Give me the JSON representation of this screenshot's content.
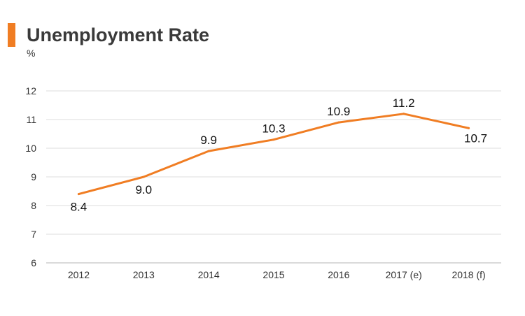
{
  "title": "Unemployment Rate",
  "unit_label": "%",
  "colors": {
    "accent": "#f07d23",
    "line": "#f07d23",
    "grid": "#dedede",
    "axis": "#b5b5b5"
  },
  "chart_data": {
    "type": "line",
    "title": "Unemployment Rate",
    "ylabel": "%",
    "xlabel": "",
    "categories": [
      "2012",
      "2013",
      "2014",
      "2015",
      "2016",
      "2017 (e)",
      "2018 (f)"
    ],
    "series": [
      {
        "values": [
          8.4,
          9.0,
          9.9,
          10.3,
          10.9,
          11.2,
          10.7
        ]
      }
    ],
    "data_labels": [
      "8.4",
      "9.0",
      "9.9",
      "10.3",
      "10.9",
      "11.2",
      "10.7"
    ],
    "ylim": [
      6,
      12
    ],
    "yticks": [
      6,
      7,
      8,
      9,
      10,
      11,
      12
    ],
    "grid": true,
    "legend": "none"
  }
}
